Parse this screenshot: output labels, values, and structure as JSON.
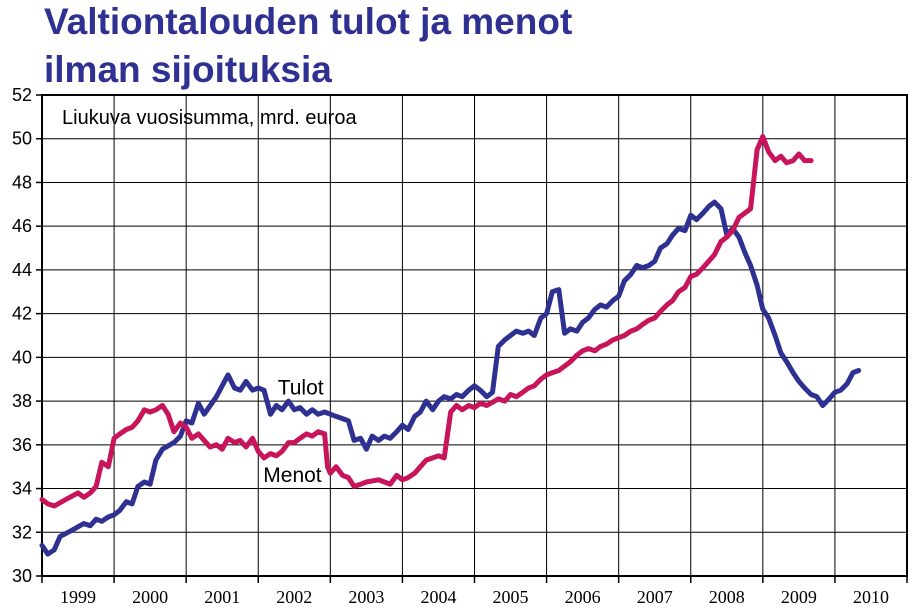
{
  "chart_data": {
    "type": "line",
    "title_lines": [
      "Valtiontalouden tulot ja menot",
      "ilman sijoituksia"
    ],
    "note": "Liukuva vuosisumma, mrd. euroa",
    "xlabel": "",
    "ylabel": "",
    "ylim": [
      30,
      52
    ],
    "yticks": [
      30,
      32,
      34,
      36,
      38,
      40,
      42,
      44,
      46,
      48,
      50,
      52
    ],
    "xlim": [
      1999.0,
      2011.0
    ],
    "categories": [
      "1999",
      "2000",
      "2001",
      "2002",
      "2003",
      "2004",
      "2005",
      "2006",
      "2007",
      "2008",
      "2009",
      "2010"
    ],
    "grid": true,
    "series": [
      {
        "name": "Tulot",
        "color": "#2e3192",
        "points": [
          [
            1999.0,
            31.4
          ],
          [
            1999.08,
            31.0
          ],
          [
            1999.17,
            31.2
          ],
          [
            1999.25,
            31.8
          ],
          [
            1999.42,
            32.1
          ],
          [
            1999.58,
            32.4
          ],
          [
            1999.67,
            32.3
          ],
          [
            1999.75,
            32.6
          ],
          [
            1999.83,
            32.5
          ],
          [
            1999.92,
            32.7
          ],
          [
            2000.0,
            32.8
          ],
          [
            2000.08,
            33.0
          ],
          [
            2000.17,
            33.4
          ],
          [
            2000.25,
            33.3
          ],
          [
            2000.33,
            34.1
          ],
          [
            2000.42,
            34.3
          ],
          [
            2000.5,
            34.2
          ],
          [
            2000.58,
            35.3
          ],
          [
            2000.67,
            35.8
          ],
          [
            2000.83,
            36.1
          ],
          [
            2000.92,
            36.4
          ],
          [
            2001.0,
            37.1
          ],
          [
            2001.08,
            37.0
          ],
          [
            2001.17,
            37.9
          ],
          [
            2001.25,
            37.4
          ],
          [
            2001.42,
            38.2
          ],
          [
            2001.58,
            39.2
          ],
          [
            2001.67,
            38.6
          ],
          [
            2001.75,
            38.5
          ],
          [
            2001.83,
            38.9
          ],
          [
            2001.92,
            38.5
          ],
          [
            2002.0,
            38.6
          ],
          [
            2002.08,
            38.5
          ],
          [
            2002.17,
            37.4
          ],
          [
            2002.25,
            37.8
          ],
          [
            2002.33,
            37.6
          ],
          [
            2002.42,
            38.0
          ],
          [
            2002.5,
            37.6
          ],
          [
            2002.58,
            37.7
          ],
          [
            2002.67,
            37.4
          ],
          [
            2002.75,
            37.6
          ],
          [
            2002.83,
            37.4
          ],
          [
            2002.92,
            37.5
          ],
          [
            2003.0,
            37.4
          ],
          [
            2003.08,
            37.3
          ],
          [
            2003.17,
            37.2
          ],
          [
            2003.25,
            37.1
          ],
          [
            2003.33,
            36.2
          ],
          [
            2003.42,
            36.3
          ],
          [
            2003.5,
            35.8
          ],
          [
            2003.58,
            36.4
          ],
          [
            2003.67,
            36.2
          ],
          [
            2003.75,
            36.4
          ],
          [
            2003.83,
            36.3
          ],
          [
            2003.92,
            36.6
          ],
          [
            2004.0,
            36.9
          ],
          [
            2004.08,
            36.7
          ],
          [
            2004.17,
            37.3
          ],
          [
            2004.25,
            37.5
          ],
          [
            2004.33,
            38.0
          ],
          [
            2004.42,
            37.6
          ],
          [
            2004.5,
            38.0
          ],
          [
            2004.58,
            38.2
          ],
          [
            2004.67,
            38.1
          ],
          [
            2004.75,
            38.3
          ],
          [
            2004.83,
            38.2
          ],
          [
            2004.92,
            38.5
          ],
          [
            2005.0,
            38.7
          ],
          [
            2005.08,
            38.5
          ],
          [
            2005.17,
            38.2
          ],
          [
            2005.25,
            38.4
          ],
          [
            2005.33,
            40.5
          ],
          [
            2005.42,
            40.8
          ],
          [
            2005.5,
            41.0
          ],
          [
            2005.58,
            41.2
          ],
          [
            2005.67,
            41.1
          ],
          [
            2005.75,
            41.2
          ],
          [
            2005.83,
            41.0
          ],
          [
            2005.92,
            41.8
          ],
          [
            2006.0,
            42.0
          ],
          [
            2006.08,
            43.0
          ],
          [
            2006.17,
            43.1
          ],
          [
            2006.25,
            41.1
          ],
          [
            2006.33,
            41.3
          ],
          [
            2006.42,
            41.2
          ],
          [
            2006.5,
            41.6
          ],
          [
            2006.58,
            41.8
          ],
          [
            2006.67,
            42.2
          ],
          [
            2006.75,
            42.4
          ],
          [
            2006.83,
            42.3
          ],
          [
            2006.92,
            42.6
          ],
          [
            2007.0,
            42.8
          ],
          [
            2007.08,
            43.5
          ],
          [
            2007.17,
            43.8
          ],
          [
            2007.25,
            44.2
          ],
          [
            2007.33,
            44.1
          ],
          [
            2007.42,
            44.2
          ],
          [
            2007.5,
            44.4
          ],
          [
            2007.58,
            45.0
          ],
          [
            2007.67,
            45.2
          ],
          [
            2007.75,
            45.6
          ],
          [
            2007.83,
            45.9
          ],
          [
            2007.92,
            45.8
          ],
          [
            2008.0,
            46.5
          ],
          [
            2008.08,
            46.3
          ],
          [
            2008.17,
            46.6
          ],
          [
            2008.25,
            46.9
          ],
          [
            2008.33,
            47.1
          ],
          [
            2008.42,
            46.8
          ],
          [
            2008.5,
            45.6
          ],
          [
            2008.58,
            45.9
          ],
          [
            2008.67,
            45.5
          ],
          [
            2008.75,
            44.8
          ],
          [
            2008.83,
            44.2
          ],
          [
            2008.92,
            43.3
          ],
          [
            2009.0,
            42.2
          ],
          [
            2009.08,
            41.8
          ],
          [
            2009.17,
            41.0
          ],
          [
            2009.25,
            40.2
          ],
          [
            2009.33,
            39.8
          ],
          [
            2009.42,
            39.3
          ],
          [
            2009.5,
            38.9
          ],
          [
            2009.58,
            38.6
          ],
          [
            2009.67,
            38.3
          ],
          [
            2009.75,
            38.2
          ],
          [
            2009.83,
            37.8
          ],
          [
            2009.92,
            38.1
          ],
          [
            2010.0,
            38.4
          ],
          [
            2010.08,
            38.5
          ],
          [
            2010.17,
            38.8
          ],
          [
            2010.25,
            39.3
          ],
          [
            2010.33,
            39.4
          ]
        ]
      },
      {
        "name": "Menot",
        "color": "#c8145a",
        "points": [
          [
            1999.0,
            33.5
          ],
          [
            1999.08,
            33.3
          ],
          [
            1999.17,
            33.2
          ],
          [
            1999.33,
            33.5
          ],
          [
            1999.5,
            33.8
          ],
          [
            1999.58,
            33.6
          ],
          [
            1999.67,
            33.8
          ],
          [
            1999.75,
            34.1
          ],
          [
            1999.83,
            35.2
          ],
          [
            1999.92,
            35.0
          ],
          [
            2000.0,
            36.3
          ],
          [
            2000.08,
            36.5
          ],
          [
            2000.17,
            36.7
          ],
          [
            2000.25,
            36.8
          ],
          [
            2000.33,
            37.1
          ],
          [
            2000.42,
            37.6
          ],
          [
            2000.5,
            37.5
          ],
          [
            2000.58,
            37.6
          ],
          [
            2000.67,
            37.8
          ],
          [
            2000.75,
            37.4
          ],
          [
            2000.83,
            36.6
          ],
          [
            2000.92,
            37.0
          ],
          [
            2001.0,
            36.8
          ],
          [
            2001.08,
            36.3
          ],
          [
            2001.17,
            36.5
          ],
          [
            2001.25,
            36.2
          ],
          [
            2001.33,
            35.9
          ],
          [
            2001.42,
            36.0
          ],
          [
            2001.5,
            35.8
          ],
          [
            2001.58,
            36.3
          ],
          [
            2001.67,
            36.1
          ],
          [
            2001.75,
            36.2
          ],
          [
            2001.83,
            35.9
          ],
          [
            2001.92,
            36.3
          ],
          [
            2002.0,
            35.7
          ],
          [
            2002.08,
            35.4
          ],
          [
            2002.17,
            35.6
          ],
          [
            2002.25,
            35.5
          ],
          [
            2002.33,
            35.7
          ],
          [
            2002.42,
            36.1
          ],
          [
            2002.5,
            36.1
          ],
          [
            2002.58,
            36.3
          ],
          [
            2002.67,
            36.5
          ],
          [
            2002.75,
            36.4
          ],
          [
            2002.83,
            36.6
          ],
          [
            2002.92,
            36.5
          ],
          [
            2002.96,
            35.0
          ],
          [
            2003.0,
            34.7
          ],
          [
            2003.08,
            35.0
          ],
          [
            2003.17,
            34.6
          ],
          [
            2003.25,
            34.5
          ],
          [
            2003.33,
            34.1
          ],
          [
            2003.42,
            34.2
          ],
          [
            2003.5,
            34.3
          ],
          [
            2003.67,
            34.4
          ],
          [
            2003.75,
            34.3
          ],
          [
            2003.83,
            34.2
          ],
          [
            2003.92,
            34.6
          ],
          [
            2004.0,
            34.4
          ],
          [
            2004.08,
            34.5
          ],
          [
            2004.17,
            34.7
          ],
          [
            2004.25,
            35.0
          ],
          [
            2004.33,
            35.3
          ],
          [
            2004.42,
            35.4
          ],
          [
            2004.5,
            35.5
          ],
          [
            2004.58,
            35.4
          ],
          [
            2004.67,
            37.5
          ],
          [
            2004.75,
            37.8
          ],
          [
            2004.83,
            37.6
          ],
          [
            2004.92,
            37.8
          ],
          [
            2005.0,
            37.7
          ],
          [
            2005.08,
            37.9
          ],
          [
            2005.17,
            37.8
          ],
          [
            2005.33,
            38.1
          ],
          [
            2005.42,
            38.0
          ],
          [
            2005.5,
            38.3
          ],
          [
            2005.58,
            38.2
          ],
          [
            2005.67,
            38.4
          ],
          [
            2005.75,
            38.6
          ],
          [
            2005.83,
            38.7
          ],
          [
            2005.92,
            39.0
          ],
          [
            2006.0,
            39.2
          ],
          [
            2006.08,
            39.3
          ],
          [
            2006.17,
            39.4
          ],
          [
            2006.25,
            39.6
          ],
          [
            2006.33,
            39.8
          ],
          [
            2006.42,
            40.1
          ],
          [
            2006.5,
            40.3
          ],
          [
            2006.58,
            40.4
          ],
          [
            2006.67,
            40.3
          ],
          [
            2006.75,
            40.5
          ],
          [
            2006.83,
            40.6
          ],
          [
            2006.92,
            40.8
          ],
          [
            2007.0,
            40.9
          ],
          [
            2007.08,
            41.0
          ],
          [
            2007.17,
            41.2
          ],
          [
            2007.25,
            41.3
          ],
          [
            2007.33,
            41.5
          ],
          [
            2007.42,
            41.7
          ],
          [
            2007.5,
            41.8
          ],
          [
            2007.58,
            42.1
          ],
          [
            2007.67,
            42.4
          ],
          [
            2007.75,
            42.6
          ],
          [
            2007.83,
            43.0
          ],
          [
            2007.92,
            43.2
          ],
          [
            2008.0,
            43.7
          ],
          [
            2008.08,
            43.8
          ],
          [
            2008.17,
            44.1
          ],
          [
            2008.25,
            44.4
          ],
          [
            2008.33,
            44.7
          ],
          [
            2008.42,
            45.3
          ],
          [
            2008.5,
            45.5
          ],
          [
            2008.58,
            45.8
          ],
          [
            2008.67,
            46.4
          ],
          [
            2008.75,
            46.6
          ],
          [
            2008.83,
            46.8
          ],
          [
            2008.92,
            49.5
          ],
          [
            2009.0,
            50.1
          ],
          [
            2009.08,
            49.4
          ],
          [
            2009.17,
            49.0
          ],
          [
            2009.25,
            49.2
          ],
          [
            2009.33,
            48.9
          ],
          [
            2009.42,
            49.0
          ],
          [
            2009.5,
            49.3
          ],
          [
            2009.58,
            49.0
          ],
          [
            2009.67,
            49.0
          ]
        ]
      }
    ],
    "series_labels": [
      {
        "series": "Tulot",
        "text": "Tulot",
        "at": [
          2002.27,
          38.3
        ]
      },
      {
        "series": "Menot",
        "text": "Menot",
        "at": [
          2002.07,
          34.3
        ]
      }
    ]
  }
}
